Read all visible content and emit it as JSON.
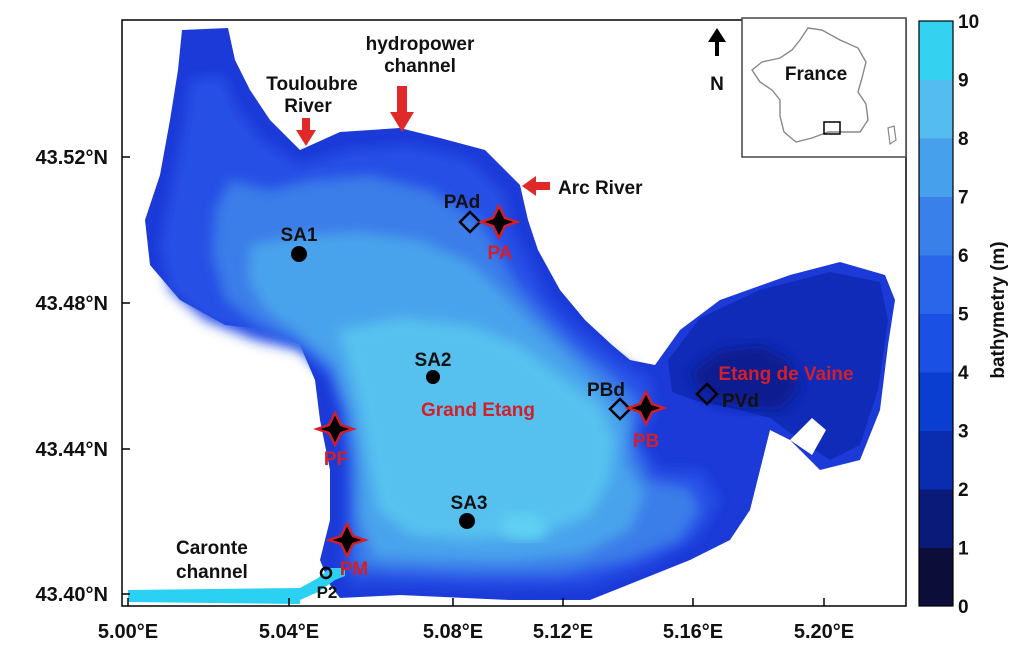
{
  "map": {
    "lat_ticks": [
      "43.52°N",
      "43.48°N",
      "43.44°N",
      "43.40°N"
    ],
    "lon_ticks": [
      "5.00°E",
      "5.04°E",
      "5.08°E",
      "5.12°E",
      "5.16°E",
      "5.20°E"
    ],
    "north_label": "N",
    "inset_label": "France",
    "labels": {
      "hydropower_line1": "hydropower",
      "hydropower_line2": "channel",
      "touloubre_line1": "Touloubre",
      "touloubre_line2": "River",
      "arc": "Arc River",
      "caronte_line1": "Caronte",
      "caronte_line2": "channel",
      "grand_etang": "Grand Etang",
      "etang_vaine": "Etang de Vaine"
    },
    "stations": {
      "SA1": "SA1",
      "SA2": "SA2",
      "SA3": "SA3",
      "PA": "PA",
      "PAd": "PAd",
      "PB": "PB",
      "PBd": "PBd",
      "PF": "PF",
      "PM": "PM",
      "PVd": "PVd",
      "P2": "P2"
    }
  },
  "colorbar": {
    "title": "bathymetry (m)",
    "ticks": [
      "0",
      "1",
      "2",
      "3",
      "4",
      "5",
      "6",
      "7",
      "8",
      "9",
      "10"
    ],
    "colors": [
      "#0d0d3a",
      "#0a1a78",
      "#0a2cae",
      "#0a3ed1",
      "#1a50e4",
      "#2a66ea",
      "#3a80ea",
      "#47a0ec",
      "#54bcee",
      "#34d2f0"
    ]
  },
  "colors": {
    "marker_red": "#d21f2a",
    "arrow_red": "#e02a2a",
    "channel": "#2ad1f2"
  }
}
